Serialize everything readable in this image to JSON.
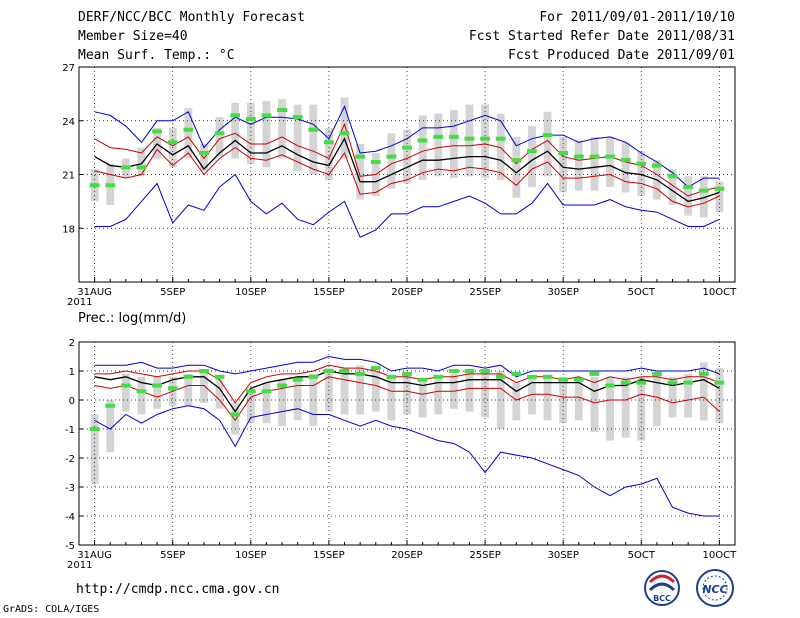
{
  "header": {
    "title": "DERF/NCC/BCC Monthly Forecast",
    "member_size": "Member Size=40",
    "variable_label": "Mean Surf. Temp.: °C",
    "forecast_period": "For 2011/09/01-2011/10/10",
    "start_ref_date": "Fcst Started Refer Date 2011/08/31",
    "produced_date": "Fcst Produced Date 2011/09/01"
  },
  "footer": {
    "url": "http://cmdp.ncc.cma.gov.cn",
    "credit": "GrADS: COLA/IGES",
    "logo_bcc": "BCC",
    "logo_ncc": "NCC"
  },
  "colors": {
    "mean": "#000000",
    "inner_spread": "#cc0000",
    "envelope": "#0000cc",
    "member_box": "#d4d4d4",
    "median": "#44dd44"
  },
  "chart_data": [
    {
      "type": "line",
      "title": "Mean Surf. Temp.: °C",
      "x": [
        0,
        1,
        2,
        3,
        4,
        5,
        6,
        7,
        8,
        9,
        10,
        11,
        12,
        13,
        14,
        15,
        16,
        17,
        18,
        19,
        20,
        21,
        22,
        23,
        24,
        25,
        26,
        27,
        28,
        29,
        30,
        31,
        32,
        33,
        34,
        35,
        36,
        37,
        38,
        39,
        40
      ],
      "xlim": [
        -1,
        41
      ],
      "ylim": [
        15,
        27
      ],
      "yticks": [
        18,
        21,
        24,
        27
      ],
      "xtick_positions": [
        0,
        5,
        10,
        15,
        20,
        25,
        30,
        35,
        40
      ],
      "xtick_labels": [
        "31AUG",
        "5SEP",
        "10SEP",
        "15SEP",
        "20SEP",
        "25SEP",
        "30SEP",
        "5OCT",
        "10OCT"
      ],
      "year_label": "2011",
      "series": [
        {
          "name": "max",
          "role": "envelope",
          "values": [
            24.5,
            24.3,
            23.7,
            22.8,
            24.0,
            24.0,
            24.5,
            22.5,
            23.5,
            24.2,
            23.8,
            24.2,
            24.2,
            24.1,
            23.8,
            23.0,
            24.8,
            22.2,
            22.3,
            22.6,
            23.0,
            23.6,
            23.6,
            23.7,
            24.0,
            24.3,
            24.0,
            22.6,
            23.0,
            23.2,
            23.2,
            22.8,
            23.0,
            23.1,
            22.8,
            22.2,
            21.7,
            21.1,
            20.3,
            20.8,
            20.8
          ]
        },
        {
          "name": "upper",
          "role": "inner",
          "values": [
            23.0,
            22.5,
            22.4,
            22.2,
            23.1,
            22.6,
            23.1,
            21.9,
            23.0,
            23.3,
            22.7,
            22.7,
            23.1,
            22.6,
            22.3,
            21.9,
            23.8,
            20.9,
            21.0,
            21.6,
            21.9,
            22.3,
            22.5,
            22.6,
            22.6,
            22.7,
            22.5,
            21.6,
            22.4,
            22.9,
            22.0,
            21.8,
            21.9,
            22.0,
            21.7,
            21.5,
            21.0,
            20.4,
            19.8,
            20.1,
            20.3
          ]
        },
        {
          "name": "mean",
          "role": "mean",
          "values": [
            22.0,
            21.5,
            21.4,
            21.6,
            22.7,
            22.1,
            22.6,
            21.3,
            22.2,
            22.9,
            22.2,
            22.2,
            22.6,
            22.1,
            21.7,
            21.5,
            23.0,
            20.6,
            20.6,
            21.0,
            21.4,
            21.8,
            21.8,
            21.9,
            22.0,
            22.0,
            21.8,
            21.1,
            21.8,
            22.3,
            21.4,
            21.3,
            21.4,
            21.5,
            21.1,
            21.0,
            20.7,
            20.1,
            19.5,
            19.7,
            20.0
          ]
        },
        {
          "name": "lower",
          "role": "inner",
          "values": [
            21.2,
            21.0,
            20.8,
            21.0,
            22.4,
            21.5,
            22.2,
            21.0,
            21.9,
            22.5,
            21.9,
            21.8,
            22.1,
            21.7,
            21.3,
            21.0,
            22.2,
            19.9,
            20.0,
            20.5,
            20.7,
            21.1,
            21.3,
            21.2,
            21.4,
            21.3,
            21.1,
            20.4,
            21.3,
            21.7,
            20.8,
            20.8,
            20.9,
            21.0,
            20.6,
            20.5,
            20.2,
            19.5,
            19.2,
            19.4,
            19.8
          ]
        },
        {
          "name": "min",
          "role": "envelope",
          "values": [
            18.1,
            18.1,
            18.5,
            19.5,
            20.5,
            18.3,
            19.3,
            19.0,
            20.3,
            21.0,
            19.5,
            18.8,
            19.4,
            18.5,
            18.2,
            18.9,
            19.5,
            17.5,
            17.9,
            18.8,
            18.8,
            19.2,
            19.2,
            19.5,
            19.8,
            19.4,
            18.8,
            18.8,
            19.4,
            20.5,
            19.3,
            19.3,
            19.3,
            19.6,
            19.2,
            19.0,
            18.9,
            18.5,
            18.1,
            18.1,
            18.5
          ]
        },
        {
          "name": "median",
          "role": "median",
          "values": [
            20.4,
            20.4,
            21.4,
            21.4,
            23.4,
            22.8,
            23.5,
            22.2,
            23.3,
            24.3,
            24.1,
            24.3,
            24.6,
            24.2,
            23.5,
            22.8,
            23.3,
            22.0,
            21.7,
            22.0,
            22.5,
            22.9,
            23.1,
            23.1,
            23.0,
            23.0,
            23.0,
            21.8,
            22.3,
            23.2,
            22.2,
            22.0,
            22.0,
            22.0,
            21.8,
            21.6,
            21.5,
            20.9,
            20.3,
            20.1,
            20.2
          ]
        }
      ],
      "boxes": [
        [
          19.5,
          21.3
        ],
        [
          19.3,
          21.6
        ],
        [
          20.8,
          21.9
        ],
        [
          20.9,
          22.5
        ],
        [
          21.9,
          23.6
        ],
        [
          21.4,
          23.6
        ],
        [
          21.9,
          24.7
        ],
        [
          21.2,
          22.7
        ],
        [
          22.0,
          24.2
        ],
        [
          21.9,
          25.0
        ],
        [
          21.6,
          25.0
        ],
        [
          21.4,
          25.1
        ],
        [
          21.9,
          25.2
        ],
        [
          21.2,
          24.9
        ],
        [
          21.0,
          24.9
        ],
        [
          20.7,
          23.6
        ],
        [
          21.9,
          25.3
        ],
        [
          19.6,
          22.7
        ],
        [
          19.8,
          22.2
        ],
        [
          20.2,
          23.3
        ],
        [
          20.5,
          23.5
        ],
        [
          20.7,
          24.3
        ],
        [
          20.9,
          24.4
        ],
        [
          20.8,
          24.6
        ],
        [
          20.9,
          24.9
        ],
        [
          20.8,
          24.9
        ],
        [
          20.7,
          24.4
        ],
        [
          19.7,
          23.1
        ],
        [
          20.3,
          23.7
        ],
        [
          20.9,
          24.5
        ],
        [
          20.0,
          23.1
        ],
        [
          20.1,
          22.9
        ],
        [
          20.1,
          23.1
        ],
        [
          20.3,
          23.1
        ],
        [
          20.0,
          22.8
        ],
        [
          19.8,
          22.3
        ],
        [
          19.6,
          21.8
        ],
        [
          19.3,
          21.3
        ],
        [
          18.7,
          20.9
        ],
        [
          18.6,
          20.9
        ],
        [
          18.9,
          20.6
        ]
      ]
    },
    {
      "type": "line",
      "title": "Prec.: log(mm/d)",
      "x": [
        0,
        1,
        2,
        3,
        4,
        5,
        6,
        7,
        8,
        9,
        10,
        11,
        12,
        13,
        14,
        15,
        16,
        17,
        18,
        19,
        20,
        21,
        22,
        23,
        24,
        25,
        26,
        27,
        28,
        29,
        30,
        31,
        32,
        33,
        34,
        35,
        36,
        37,
        38,
        39,
        40
      ],
      "xlim": [
        -1,
        41
      ],
      "ylim": [
        -5,
        2
      ],
      "yticks": [
        -5,
        -4,
        -3,
        -2,
        -1,
        0,
        1,
        2
      ],
      "xtick_positions": [
        0,
        5,
        10,
        15,
        20,
        25,
        30,
        35,
        40
      ],
      "xtick_labels": [
        "31AUG",
        "5SEP",
        "10SEP",
        "15SEP",
        "20SEP",
        "25SEP",
        "30SEP",
        "5OCT",
        "10OCT"
      ],
      "year_label": "2011",
      "series": [
        {
          "name": "max",
          "role": "envelope",
          "values": [
            1.2,
            1.2,
            1.2,
            1.3,
            1.1,
            1.1,
            1.2,
            1.2,
            1.0,
            0.9,
            1.0,
            1.1,
            1.2,
            1.3,
            1.3,
            1.5,
            1.4,
            1.4,
            1.3,
            1.0,
            1.1,
            1.1,
            1.0,
            1.2,
            1.2,
            1.1,
            1.2,
            0.8,
            1.0,
            1.0,
            1.0,
            1.0,
            1.0,
            1.0,
            1.0,
            1.1,
            1.0,
            1.0,
            1.0,
            1.1,
            0.9
          ]
        },
        {
          "name": "upper",
          "role": "inner",
          "values": [
            0.9,
            0.9,
            1.0,
            0.9,
            0.8,
            0.9,
            1.0,
            1.0,
            0.7,
            -0.1,
            0.6,
            0.8,
            0.9,
            0.9,
            1.0,
            1.2,
            1.1,
            1.1,
            1.0,
            0.8,
            0.8,
            0.7,
            0.8,
            0.8,
            0.9,
            0.9,
            0.9,
            0.6,
            0.8,
            0.8,
            0.7,
            0.8,
            0.6,
            0.8,
            0.7,
            0.8,
            0.8,
            0.7,
            0.8,
            0.8,
            0.6
          ]
        },
        {
          "name": "mean",
          "role": "mean",
          "values": [
            0.8,
            0.7,
            0.8,
            0.6,
            0.5,
            0.7,
            0.8,
            0.8,
            0.4,
            -0.4,
            0.4,
            0.6,
            0.7,
            0.8,
            0.8,
            1.0,
            0.9,
            0.9,
            0.8,
            0.6,
            0.6,
            0.5,
            0.6,
            0.6,
            0.7,
            0.7,
            0.7,
            0.3,
            0.6,
            0.6,
            0.6,
            0.6,
            0.3,
            0.5,
            0.5,
            0.7,
            0.6,
            0.5,
            0.6,
            0.7,
            0.4
          ]
        },
        {
          "name": "lower",
          "role": "inner",
          "values": [
            0.5,
            0.4,
            0.5,
            0.3,
            0.1,
            0.3,
            0.5,
            0.5,
            0.0,
            -0.7,
            0.1,
            0.3,
            0.4,
            0.5,
            0.5,
            0.8,
            0.7,
            0.6,
            0.5,
            0.3,
            0.3,
            0.2,
            0.3,
            0.3,
            0.4,
            0.4,
            0.4,
            0.0,
            0.2,
            0.2,
            0.1,
            0.1,
            -0.1,
            0.0,
            0.0,
            0.2,
            0.1,
            -0.1,
            0.0,
            0.1,
            -0.4
          ]
        },
        {
          "name": "min",
          "role": "envelope",
          "values": [
            -0.7,
            -1.0,
            -0.5,
            -0.8,
            -0.5,
            -0.3,
            -0.2,
            -0.3,
            -0.7,
            -1.6,
            -0.6,
            -0.5,
            -0.4,
            -0.3,
            -0.5,
            -0.5,
            -0.7,
            -0.9,
            -0.7,
            -0.9,
            -1.0,
            -1.2,
            -1.4,
            -1.5,
            -1.8,
            -2.5,
            -1.8,
            -1.9,
            -2.0,
            -2.2,
            -2.4,
            -2.6,
            -3.0,
            -3.3,
            -3.0,
            -2.9,
            -2.7,
            -3.7,
            -3.9,
            -4.0,
            -4.0
          ]
        },
        {
          "name": "median",
          "role": "median",
          "values": [
            -1.0,
            -0.2,
            0.5,
            0.3,
            0.5,
            0.4,
            0.8,
            1.0,
            0.8,
            -0.5,
            0.3,
            0.3,
            0.5,
            0.7,
            0.8,
            1.0,
            1.0,
            0.9,
            1.1,
            0.8,
            0.9,
            0.7,
            0.8,
            1.0,
            1.0,
            1.0,
            0.8,
            0.9,
            0.8,
            0.8,
            0.7,
            0.7,
            0.9,
            0.5,
            0.6,
            0.6,
            0.9,
            0.6,
            0.6,
            0.9,
            0.6
          ]
        }
      ],
      "boxes": [
        [
          -2.9,
          -0.5
        ],
        [
          -1.8,
          0.0
        ],
        [
          -0.4,
          0.9
        ],
        [
          -0.5,
          0.8
        ],
        [
          -0.3,
          0.8
        ],
        [
          -0.2,
          0.8
        ],
        [
          -0.2,
          0.9
        ],
        [
          -0.1,
          1.0
        ],
        [
          -0.3,
          0.8
        ],
        [
          -1.2,
          -0.1
        ],
        [
          -0.8,
          0.4
        ],
        [
          -0.8,
          0.6
        ],
        [
          -0.9,
          0.7
        ],
        [
          -0.7,
          0.7
        ],
        [
          -0.9,
          0.9
        ],
        [
          -0.4,
          1.1
        ],
        [
          -0.5,
          1.1
        ],
        [
          -0.5,
          1.2
        ],
        [
          -0.4,
          1.0
        ],
        [
          -0.7,
          0.8
        ],
        [
          -0.5,
          0.9
        ],
        [
          -0.6,
          0.7
        ],
        [
          -0.5,
          0.8
        ],
        [
          -0.3,
          0.9
        ],
        [
          -0.4,
          1.0
        ],
        [
          -0.6,
          1.0
        ],
        [
          -1.0,
          1.0
        ],
        [
          -0.7,
          0.6
        ],
        [
          -0.5,
          0.8
        ],
        [
          -0.7,
          0.8
        ],
        [
          -0.8,
          0.8
        ],
        [
          -0.7,
          0.8
        ],
        [
          -1.1,
          0.8
        ],
        [
          -1.4,
          0.8
        ],
        [
          -1.3,
          0.8
        ],
        [
          -1.4,
          0.8
        ],
        [
          -0.9,
          0.9
        ],
        [
          -0.6,
          0.8
        ],
        [
          -0.6,
          0.9
        ],
        [
          -0.7,
          1.3
        ],
        [
          -0.8,
          1.1
        ]
      ]
    }
  ]
}
